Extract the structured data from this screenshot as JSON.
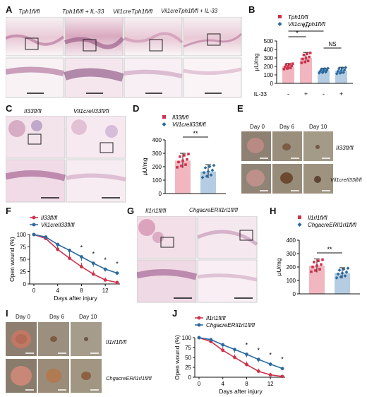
{
  "panel_labels": [
    "A",
    "B",
    "C",
    "D",
    "E",
    "F",
    "G",
    "H",
    "I",
    "J"
  ],
  "panel_a": {
    "captions": [
      "Tph1fl/fl",
      "Tph1fl/fl + IL-33",
      "Vil1creTph1fl/fl",
      "Vil1creTph1fl/fl + IL-33"
    ]
  },
  "panel_c": {
    "captions": [
      "Il33fl/fl",
      "Vil1creIl33fl/fl"
    ]
  },
  "panel_e": {
    "days": [
      "Day 0",
      "Day 6",
      "Day 10"
    ],
    "rows": [
      "Il33fl/fl",
      "Vil1creIl33fl/fl"
    ]
  },
  "panel_g": {
    "captions": [
      "Il1rl1fl/fl",
      "ChgacreERIl1rl1fl/fl"
    ]
  },
  "panel_i": {
    "days": [
      "Day 0",
      "Day 6",
      "Day 10"
    ],
    "rows": [
      "Il1rl1fl/fl",
      "ChgacreERIl1rl1fl/fl"
    ]
  },
  "colors": {
    "red": "#d0314a",
    "blue": "#2b6a9e",
    "red_bar": "#f2b6c0",
    "blue_bar": "#b5cde3"
  },
  "chart_data": [
    {
      "panel": "B",
      "type": "bar",
      "ylabel": "μU/mg",
      "ylim": [
        0,
        500
      ],
      "yticks": [
        0,
        100,
        200,
        300,
        400,
        500
      ],
      "x_row_label": "IL-33",
      "categories": [
        "-",
        "+",
        "-",
        "+"
      ],
      "legend": [
        "Tph1fl/fl",
        "Vil1creTph1fl/fl"
      ],
      "values": [
        200,
        300,
        150,
        150
      ],
      "errors": [
        35,
        65,
        30,
        40
      ],
      "significance": [
        "*",
        "***",
        "NS"
      ]
    },
    {
      "panel": "D",
      "type": "bar",
      "ylabel": "μU/mg",
      "ylim": [
        0,
        400
      ],
      "yticks": [
        0,
        100,
        200,
        300,
        400
      ],
      "legend": [
        "Il33fl/fl",
        "Vil1creIl33fl/fl"
      ],
      "values": [
        245,
        165
      ],
      "errors": [
        55,
        50
      ],
      "significance": [
        "**"
      ]
    },
    {
      "panel": "F",
      "type": "line",
      "xlabel": "Days after injury",
      "ylabel": "Open wound (%)",
      "ylim": [
        0,
        100
      ],
      "yticks": [
        0,
        25,
        50,
        75,
        100
      ],
      "xticks": [
        0,
        4,
        8,
        12
      ],
      "x": [
        0,
        2,
        4,
        6,
        8,
        10,
        12,
        14
      ],
      "series": [
        {
          "name": "Il33fl/fl",
          "values": [
            100,
            92,
            70,
            52,
            35,
            20,
            8,
            3
          ]
        },
        {
          "name": "Vil1creIl33fl/fl",
          "values": [
            100,
            95,
            80,
            68,
            55,
            42,
            30,
            22
          ]
        }
      ],
      "errors": [
        0,
        4,
        8,
        9,
        8,
        7,
        5,
        3
      ],
      "significance_x": [
        8,
        10,
        12,
        14
      ],
      "significance": [
        "*",
        "*",
        "*",
        "*"
      ]
    },
    {
      "panel": "H",
      "type": "bar",
      "ylabel": "μU/mg",
      "ylim": [
        0,
        400
      ],
      "yticks": [
        0,
        100,
        200,
        300,
        400
      ],
      "legend": [
        "Il1rl1fl/fl",
        "ChgacreERIl1rl1fl/fl"
      ],
      "values": [
        210,
        155
      ],
      "errors": [
        50,
        40
      ],
      "significance": [
        "**"
      ]
    },
    {
      "panel": "J",
      "type": "line",
      "xlabel": "Days after injury",
      "ylabel": "Open wound (%)",
      "ylim": [
        0,
        100
      ],
      "yticks": [
        0,
        25,
        50,
        75,
        100
      ],
      "xticks": [
        0,
        4,
        8,
        12
      ],
      "x": [
        0,
        2,
        4,
        6,
        8,
        10,
        12,
        14
      ],
      "series": [
        {
          "name": "Il1rl1fl/fl",
          "values": [
            100,
            90,
            68,
            50,
            32,
            15,
            6,
            2
          ]
        },
        {
          "name": "ChgacreERIl1rl1fl/fl",
          "values": [
            100,
            95,
            82,
            70,
            58,
            45,
            33,
            22
          ]
        }
      ],
      "errors": [
        0,
        4,
        7,
        8,
        8,
        7,
        5,
        4
      ],
      "significance_x": [
        8,
        10,
        12,
        14
      ],
      "significance": [
        "*",
        "*",
        "*",
        "*"
      ]
    }
  ]
}
